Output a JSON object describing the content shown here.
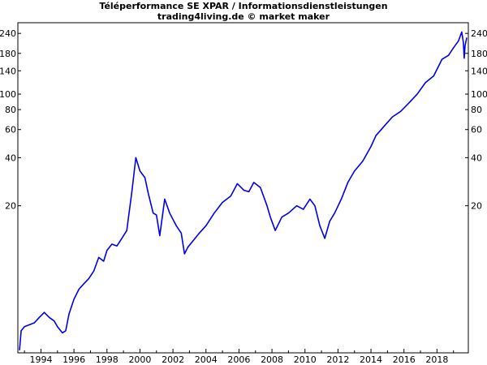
{
  "header": {
    "title": "Téléperformance SE XPAR / Informationsdienstleistungen",
    "subtitle": "trading4living.de © market maker"
  },
  "chart_data": {
    "type": "line",
    "title": "Téléperformance SE XPAR / Informationsdienstleistungen",
    "subtitle": "trading4living.de © market maker",
    "xlabel": "",
    "ylabel": "",
    "y_scale": "log",
    "y_ticks": [
      20,
      40,
      60,
      80,
      100,
      140,
      180,
      240
    ],
    "y_ticks_right": [
      20,
      40,
      60,
      80,
      100,
      140,
      180,
      240
    ],
    "x_ticks": [
      "1994",
      "1996",
      "1998",
      "2000",
      "2002",
      "2004",
      "2006",
      "2008",
      "2010",
      "2012",
      "2014",
      "2016",
      "2018"
    ],
    "xlim": [
      1992.6,
      2019.9
    ],
    "ylim": [
      2.4,
      280
    ],
    "grid": false,
    "series": [
      {
        "color": "#0000ee",
        "points": [
          [
            1992.7,
            2.5
          ],
          [
            1992.8,
            3.3
          ],
          [
            1993.0,
            3.5
          ],
          [
            1993.3,
            3.6
          ],
          [
            1993.6,
            3.7
          ],
          [
            1993.9,
            4.0
          ],
          [
            1994.2,
            4.3
          ],
          [
            1994.5,
            4.0
          ],
          [
            1994.8,
            3.8
          ],
          [
            1995.0,
            3.5
          ],
          [
            1995.3,
            3.2
          ],
          [
            1995.5,
            3.3
          ],
          [
            1995.7,
            4.2
          ],
          [
            1996.0,
            5.2
          ],
          [
            1996.3,
            6.0
          ],
          [
            1996.6,
            6.5
          ],
          [
            1996.9,
            7.0
          ],
          [
            1997.2,
            7.8
          ],
          [
            1997.5,
            9.5
          ],
          [
            1997.8,
            9.0
          ],
          [
            1998.0,
            10.5
          ],
          [
            1998.3,
            11.5
          ],
          [
            1998.6,
            11.2
          ],
          [
            1998.9,
            12.5
          ],
          [
            1999.2,
            14.0
          ],
          [
            1999.5,
            24.0
          ],
          [
            1999.75,
            40.0
          ],
          [
            2000.0,
            33.0
          ],
          [
            2000.3,
            30.0
          ],
          [
            2000.5,
            24.0
          ],
          [
            2000.8,
            18.0
          ],
          [
            2001.0,
            17.5
          ],
          [
            2001.2,
            13.0
          ],
          [
            2001.5,
            22.0
          ],
          [
            2001.8,
            18.0
          ],
          [
            2002.2,
            15.0
          ],
          [
            2002.5,
            13.5
          ],
          [
            2002.7,
            10.0
          ],
          [
            2002.9,
            11.0
          ],
          [
            2003.2,
            12.0
          ],
          [
            2003.6,
            13.5
          ],
          [
            2004.0,
            15.0
          ],
          [
            2004.5,
            18.0
          ],
          [
            2005.0,
            21.0
          ],
          [
            2005.5,
            23.0
          ],
          [
            2005.9,
            27.5
          ],
          [
            2006.3,
            25.0
          ],
          [
            2006.6,
            24.5
          ],
          [
            2006.9,
            28.0
          ],
          [
            2007.3,
            26.0
          ],
          [
            2007.7,
            20.0
          ],
          [
            2007.9,
            17.0
          ],
          [
            2008.2,
            14.0
          ],
          [
            2008.6,
            17.0
          ],
          [
            2009.0,
            18.0
          ],
          [
            2009.5,
            20.0
          ],
          [
            2009.9,
            19.0
          ],
          [
            2010.3,
            22.0
          ],
          [
            2010.6,
            20.0
          ],
          [
            2010.9,
            15.0
          ],
          [
            2011.2,
            12.5
          ],
          [
            2011.5,
            16.0
          ],
          [
            2011.8,
            18.0
          ],
          [
            2012.2,
            22.0
          ],
          [
            2012.6,
            28.0
          ],
          [
            2013.0,
            33.0
          ],
          [
            2013.5,
            38.0
          ],
          [
            2014.0,
            47.0
          ],
          [
            2014.3,
            55.0
          ],
          [
            2014.8,
            63.0
          ],
          [
            2015.3,
            72.0
          ],
          [
            2015.8,
            78.0
          ],
          [
            2016.3,
            88.0
          ],
          [
            2016.8,
            100.0
          ],
          [
            2017.3,
            118.0
          ],
          [
            2017.8,
            130.0
          ],
          [
            2018.3,
            165.0
          ],
          [
            2018.7,
            175.0
          ],
          [
            2019.0,
            195.0
          ],
          [
            2019.3,
            215.0
          ],
          [
            2019.5,
            245.0
          ],
          [
            2019.6,
            210.0
          ],
          [
            2019.65,
            168.0
          ],
          [
            2019.7,
            200.0
          ],
          [
            2019.8,
            225.0
          ]
        ]
      }
    ]
  }
}
